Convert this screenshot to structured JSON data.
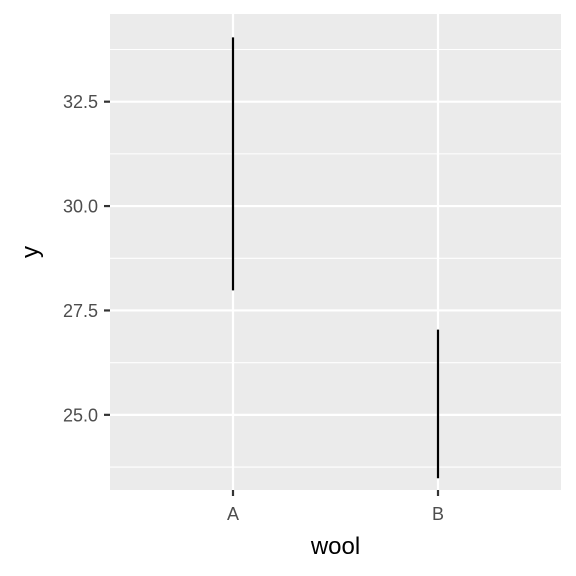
{
  "chart_data": {
    "type": "errorbar",
    "title": "",
    "xlabel": "wool",
    "ylabel": "y",
    "categories": [
      "A",
      "B"
    ],
    "ranges": [
      {
        "category": "A",
        "ymin": 27.98,
        "ymax": 34.04
      },
      {
        "category": "B",
        "ymin": 23.48,
        "ymax": 27.04
      }
    ],
    "ylim": [
      23.2,
      34.6
    ],
    "y_ticks": [
      25.0,
      27.5,
      30.0,
      32.5
    ],
    "y_tick_labels": [
      "25.0",
      "27.5",
      "30.0",
      "32.5"
    ],
    "grid": true,
    "legend": "none",
    "colors": {
      "panel": "#ebebeb",
      "grid": "#ffffff",
      "bar": "#000000",
      "tick_text": "#4d4d4d",
      "tick_mark": "#333333"
    }
  }
}
